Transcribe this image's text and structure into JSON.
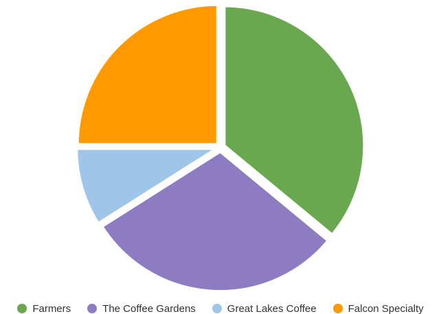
{
  "chart_data": {
    "type": "pie",
    "title": "",
    "categories": [
      "Farmers",
      "The Coffee Gardens",
      "Great Lakes Coffee",
      "Falcon Specialty"
    ],
    "values": [
      36,
      30,
      9,
      25
    ],
    "colors": [
      "#6aa84f",
      "#8e7cc3",
      "#9fc5e8",
      "#ff9900"
    ],
    "start_angle_deg": 0,
    "direction": "clockwise",
    "legend_position": "bottom"
  }
}
